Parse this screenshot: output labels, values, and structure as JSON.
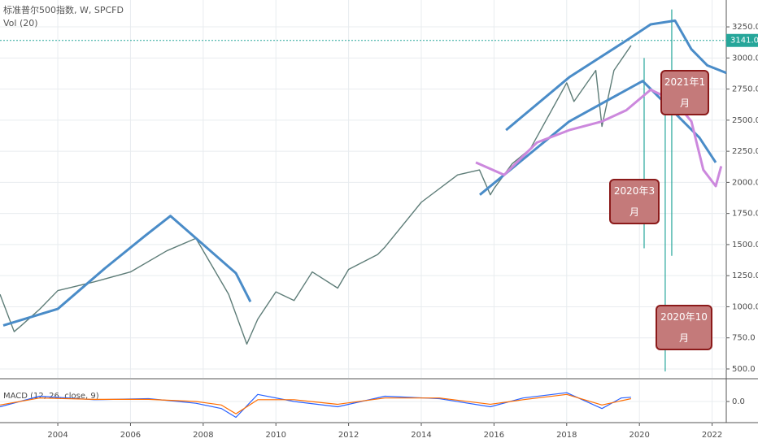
{
  "chart_data": {
    "type": "line",
    "title": "标准普尔500指数, W, SPCFD",
    "subtitle": "Vol (20)",
    "grid": true,
    "xlim": [
      2002.41,
      2022.39
    ],
    "xticks": [
      2004,
      2006,
      2008,
      2010,
      2012,
      2014,
      2016,
      2018,
      2020,
      2022
    ],
    "ylim": [
      428,
      3466
    ],
    "yticks": [
      {
        "value": 500,
        "label": "500.0"
      },
      {
        "value": 750,
        "label": "750.0"
      },
      {
        "value": 1000,
        "label": "1000.0"
      },
      {
        "value": 1250,
        "label": "1250.0"
      },
      {
        "value": 1500,
        "label": "1500.0"
      },
      {
        "value": 1750,
        "label": "1750.0"
      },
      {
        "value": 2000,
        "label": "2000.0"
      },
      {
        "value": 2250,
        "label": "2250.0"
      },
      {
        "value": 2500,
        "label": "2500.0"
      },
      {
        "value": 2750,
        "label": "2750.0"
      },
      {
        "value": 3000,
        "label": "3000.0"
      },
      {
        "value": 3250,
        "label": "3250.0"
      }
    ],
    "last_price": {
      "value": 3141,
      "label": "3141.0"
    },
    "series": [
      {
        "color": "#5e7d78",
        "width": 1.4,
        "x": [
          2002.41,
          2002.8,
          2003.0,
          2003.5,
          2004.0,
          2005.0,
          2006.0,
          2007.0,
          2007.8,
          2008.2,
          2008.7,
          2009.2,
          2009.5,
          2010.0,
          2010.5,
          2011.0,
          2011.7,
          2012.0,
          2012.8,
          2013.0,
          2014.0,
          2015.0,
          2015.6,
          2015.9,
          2016.0,
          2016.5,
          2017.0,
          2018.0,
          2018.2,
          2018.8,
          2018.97,
          2019.3,
          2019.77
        ],
        "values": [
          1100,
          800,
          850,
          980,
          1130,
          1200,
          1280,
          1450,
          1550,
          1350,
          1100,
          700,
          900,
          1120,
          1050,
          1280,
          1150,
          1300,
          1420,
          1480,
          1840,
          2060,
          2100,
          1900,
          1950,
          2150,
          2270,
          2800,
          2650,
          2900,
          2450,
          2900,
          3100
        ]
      },
      {
        "color": "#4a8cc8",
        "width": 3,
        "x": [
          2002.5,
          2004.0,
          2005.3,
          2006.4,
          2007.1,
          2008.0,
          2008.9,
          2009.3
        ],
        "values": [
          850,
          983,
          1310,
          1570,
          1730,
          1500,
          1270,
          1040
        ]
      },
      {
        "color": "#4a8cc8",
        "width": 3,
        "x": [
          2016.33,
          2018.07,
          2019.64,
          2020.31,
          2020.98,
          2021.43,
          2021.87,
          2022.39
        ],
        "values": [
          2420,
          2845,
          3140,
          3270,
          3300,
          3070,
          2940,
          2880
        ]
      },
      {
        "color": "#4a8cc8",
        "width": 3,
        "x": [
          2015.61,
          2018.07,
          2020.09,
          2020.76,
          2021.65,
          2022.1
        ],
        "values": [
          1900,
          2490,
          2815,
          2620,
          2360,
          2160
        ]
      },
      {
        "color": "#cc88dd",
        "width": 3,
        "x": [
          2015.5,
          2016.28,
          2017.18,
          2018.07,
          2018.97,
          2019.64,
          2020.31,
          2020.98,
          2021.43,
          2021.76,
          2022.1,
          2022.25
        ],
        "values": [
          2160,
          2060,
          2320,
          2420,
          2490,
          2580,
          2745,
          2650,
          2490,
          2100,
          1970,
          2130
        ]
      }
    ],
    "spikes": [
      {
        "x": 2020.13,
        "high": 3000,
        "low": 1470
      },
      {
        "x": 2020.71,
        "high": 2800,
        "low": 480
      },
      {
        "x": 2020.89,
        "high": 3390,
        "low": 1410
      }
    ],
    "annotations": [
      "2021年1月",
      "2020年3月",
      "2020年10月"
    ],
    "macd": {
      "label": "MACD (12, 26, close, 9)",
      "ylim": [
        -60,
        60
      ],
      "yticks": [
        {
          "value": 0,
          "label": "0.0"
        }
      ],
      "series": [
        {
          "color": "#2962ff",
          "x": [
            2002.41,
            2003.5,
            2005.0,
            2006.5,
            2007.8,
            2008.5,
            2008.9,
            2009.5,
            2010.5,
            2011.7,
            2013.0,
            2014.5,
            2015.9,
            2016.8,
            2018.0,
            2018.97,
            2019.5,
            2019.77
          ],
          "values": [
            -15,
            15,
            5,
            8,
            -5,
            -20,
            -45,
            20,
            0,
            -15,
            15,
            8,
            -15,
            10,
            25,
            -20,
            10,
            12
          ]
        },
        {
          "color": "#ff6d00",
          "x": [
            2002.41,
            2003.5,
            2005.0,
            2006.5,
            2007.8,
            2008.5,
            2008.9,
            2009.5,
            2010.5,
            2011.7,
            2013.0,
            2014.5,
            2015.9,
            2016.8,
            2018.0,
            2018.97,
            2019.5,
            2019.77
          ],
          "values": [
            -10,
            10,
            6,
            6,
            0,
            -10,
            -35,
            5,
            5,
            -8,
            10,
            10,
            -8,
            5,
            20,
            -10,
            2,
            8
          ]
        }
      ]
    }
  }
}
